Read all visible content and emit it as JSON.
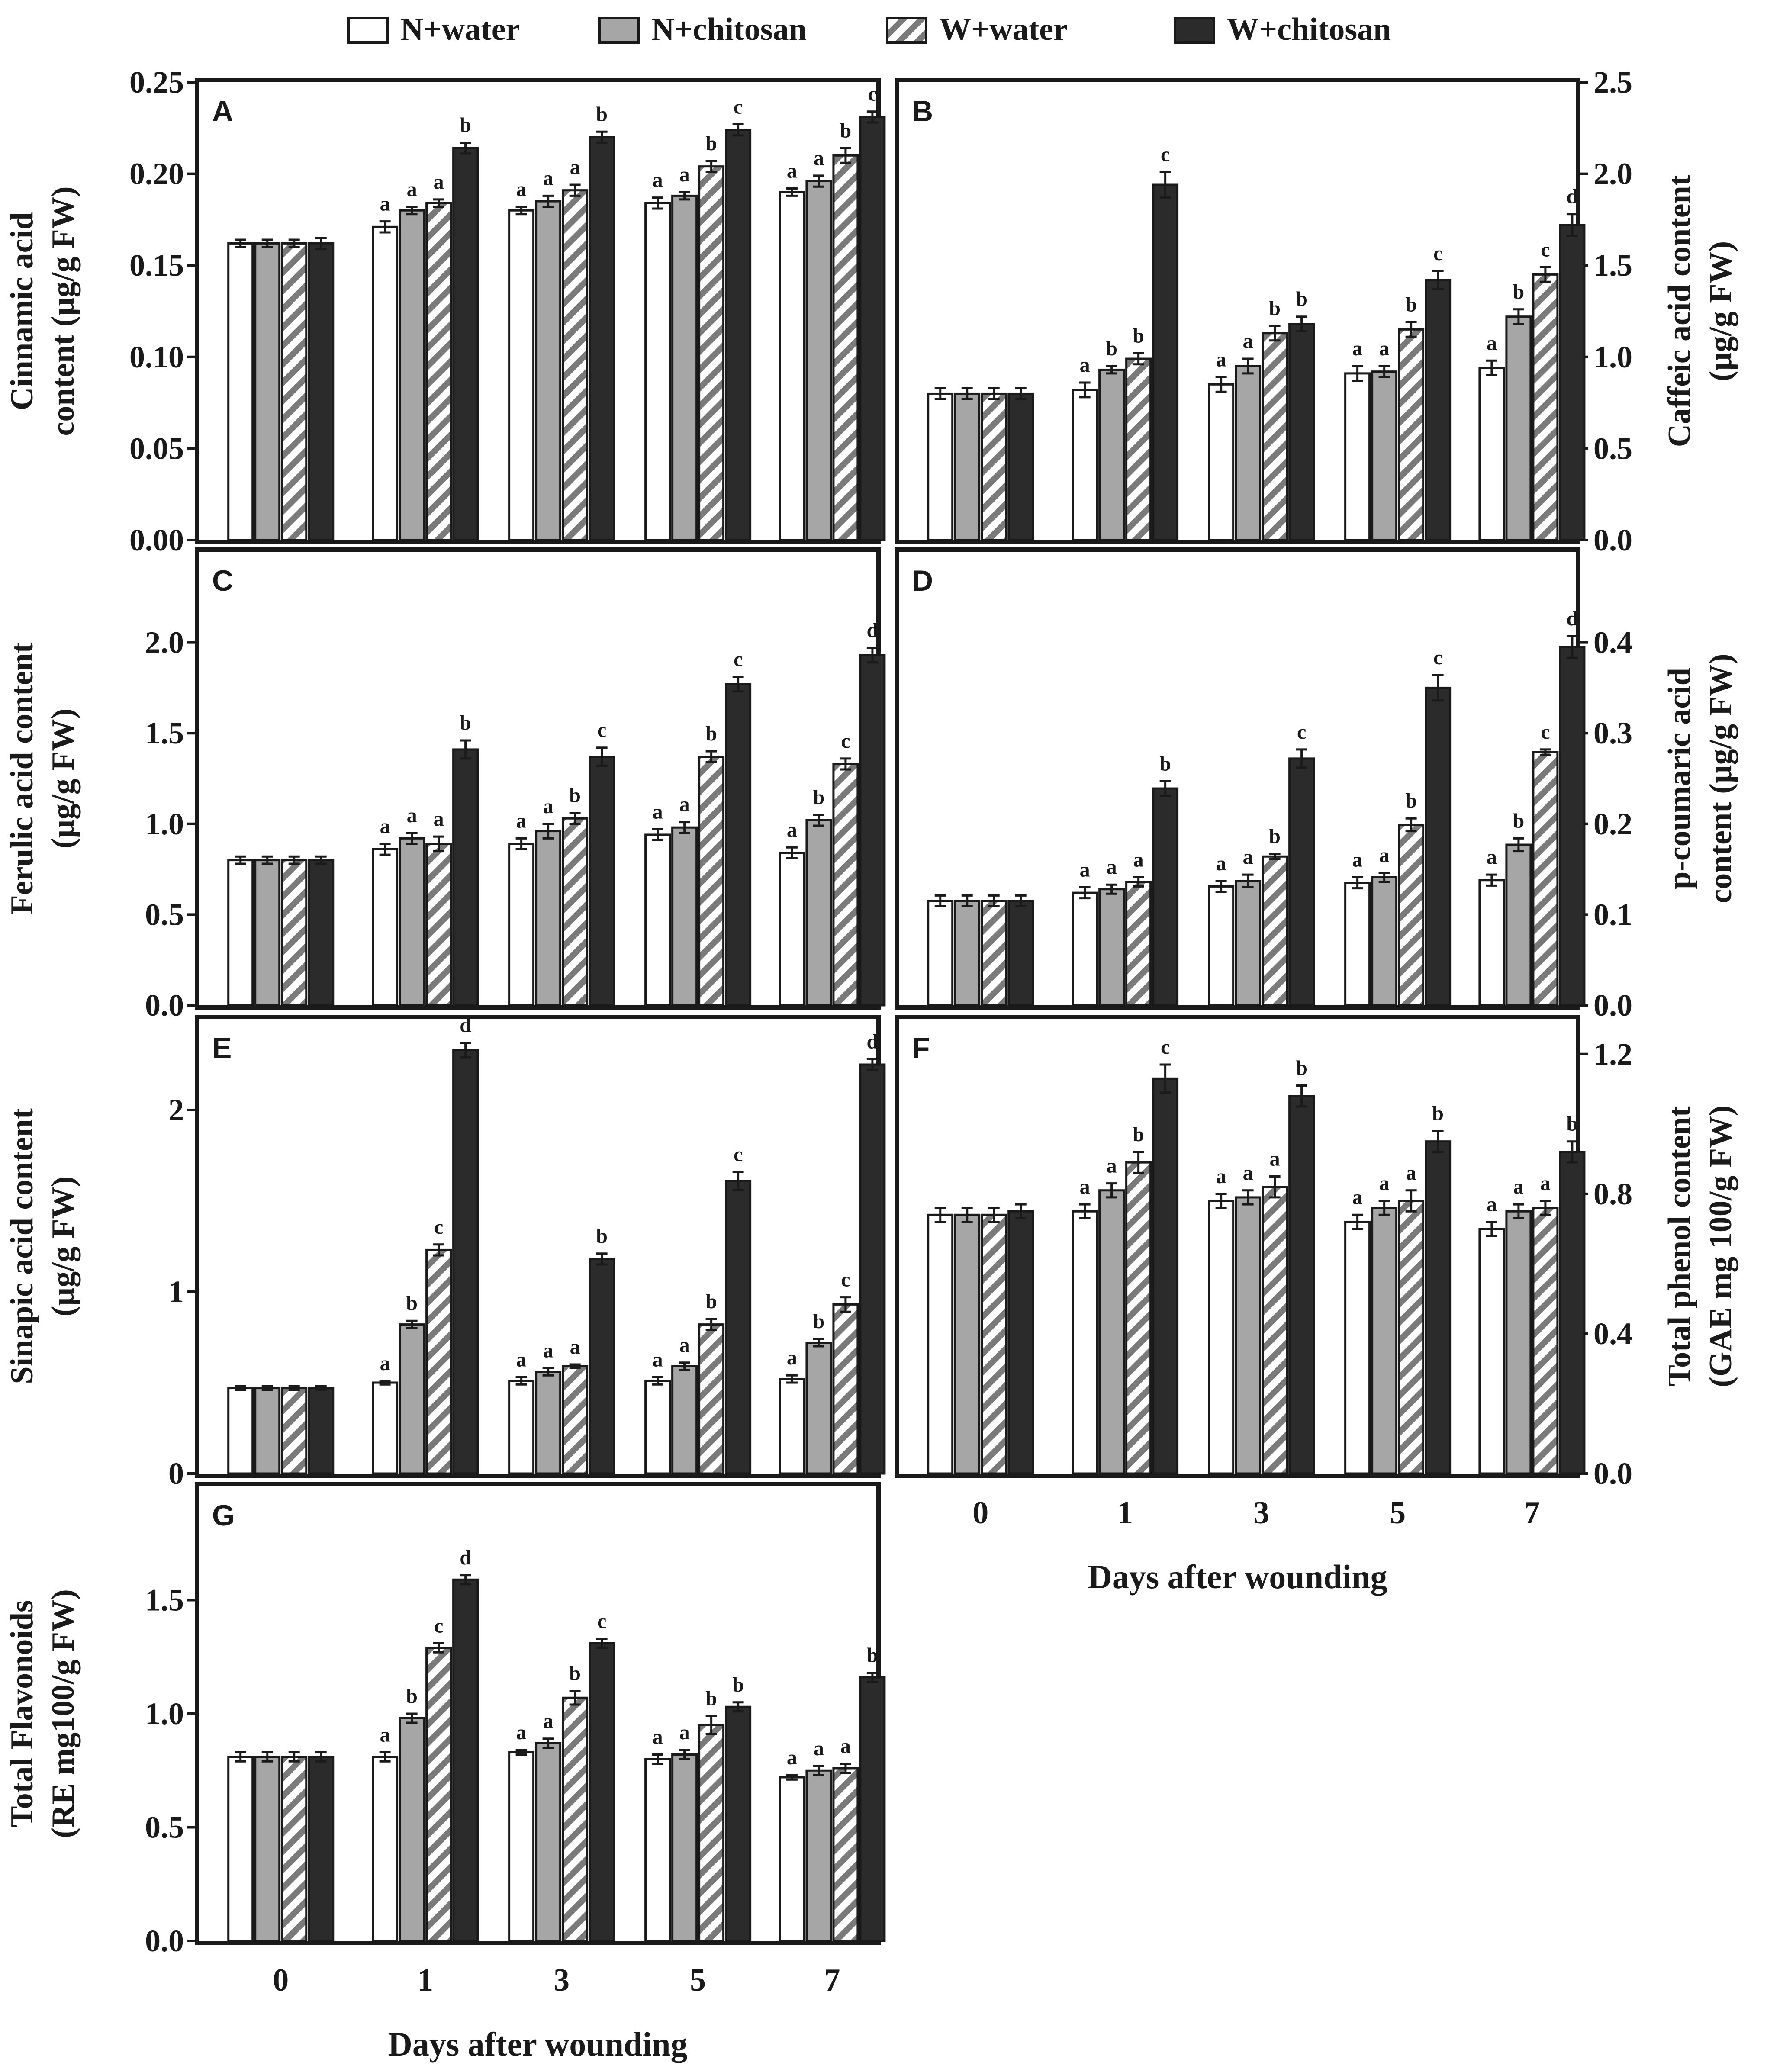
{
  "legend": {
    "items": [
      {
        "label": "N+water",
        "pattern": "white"
      },
      {
        "label": "N+chitosan",
        "pattern": "gray"
      },
      {
        "label": "W+water",
        "pattern": "hatch"
      },
      {
        "label": "W+chitosan",
        "pattern": "black"
      }
    ]
  },
  "colors": {
    "white_fill": "#ffffff",
    "gray_fill": "#a6a6a6",
    "black_fill": "#2b2b2b",
    "hatch_stroke": "#7a7a7a",
    "ink": "#1a1a1a"
  },
  "x_axis_label": "Days after wounding",
  "chart_data": [
    {
      "panel": "A",
      "type": "bar",
      "ylabel": "Cinnamic acid\ncontent (µg/g FW)",
      "axis_side": "left",
      "categories": [
        "0",
        "1",
        "3",
        "5",
        "7"
      ],
      "ylim": [
        0,
        0.25
      ],
      "yticks": [
        0.0,
        0.05,
        0.1,
        0.15,
        0.2,
        0.25
      ],
      "ytick_labels": [
        "0.00",
        "0.05",
        "0.10",
        "0.15",
        "0.20",
        "0.25"
      ],
      "show_xticks": false,
      "series": [
        {
          "name": "N+water",
          "values": [
            0.162,
            0.171,
            0.18,
            0.184,
            0.19
          ],
          "errors": [
            0.002,
            0.003,
            0.002,
            0.003,
            0.002
          ],
          "letters": [
            "",
            "a",
            "a",
            "a",
            "a"
          ]
        },
        {
          "name": "N+chitosan",
          "values": [
            0.162,
            0.18,
            0.185,
            0.188,
            0.196
          ],
          "errors": [
            0.002,
            0.002,
            0.003,
            0.002,
            0.003
          ],
          "letters": [
            "",
            "a",
            "a",
            "a",
            "a"
          ]
        },
        {
          "name": "W+water",
          "values": [
            0.162,
            0.184,
            0.191,
            0.204,
            0.21
          ],
          "errors": [
            0.002,
            0.002,
            0.003,
            0.003,
            0.004
          ],
          "letters": [
            "",
            "a",
            "a",
            "b",
            "b"
          ]
        },
        {
          "name": "W+chitosan",
          "values": [
            0.162,
            0.214,
            0.22,
            0.224,
            0.231
          ],
          "errors": [
            0.003,
            0.003,
            0.003,
            0.003,
            0.003
          ],
          "letters": [
            "",
            "b",
            "b",
            "c",
            "c"
          ]
        }
      ]
    },
    {
      "panel": "B",
      "type": "bar",
      "ylabel": "Caffeic acid content\n(µg/g FW)",
      "axis_side": "right",
      "categories": [
        "0",
        "1",
        "3",
        "5",
        "7"
      ],
      "ylim": [
        0,
        2.5
      ],
      "yticks": [
        0.0,
        0.5,
        1.0,
        1.5,
        2.0,
        2.5
      ],
      "ytick_labels": [
        "0.0",
        "0.5",
        "1.0",
        "1.5",
        "2.0",
        "2.5"
      ],
      "show_xticks": false,
      "series": [
        {
          "name": "N+water",
          "values": [
            0.8,
            0.82,
            0.85,
            0.91,
            0.94
          ],
          "errors": [
            0.03,
            0.04,
            0.04,
            0.04,
            0.04
          ],
          "letters": [
            "",
            "a",
            "a",
            "a",
            "a"
          ]
        },
        {
          "name": "N+chitosan",
          "values": [
            0.8,
            0.93,
            0.95,
            0.92,
            1.22
          ],
          "errors": [
            0.03,
            0.02,
            0.04,
            0.03,
            0.04
          ],
          "letters": [
            "",
            "b",
            "a",
            "a",
            "b"
          ]
        },
        {
          "name": "W+water",
          "values": [
            0.8,
            0.99,
            1.13,
            1.15,
            1.45
          ],
          "errors": [
            0.03,
            0.03,
            0.04,
            0.04,
            0.04
          ],
          "letters": [
            "",
            "b",
            "b",
            "b",
            "c"
          ]
        },
        {
          "name": "W+chitosan",
          "values": [
            0.8,
            1.94,
            1.18,
            1.42,
            1.72
          ],
          "errors": [
            0.03,
            0.07,
            0.04,
            0.05,
            0.06
          ],
          "letters": [
            "",
            "c",
            "b",
            "c",
            "d"
          ]
        }
      ]
    },
    {
      "panel": "C",
      "type": "bar",
      "ylabel": "Ferulic acid content\n(µg/g FW)",
      "axis_side": "left",
      "categories": [
        "0",
        "1",
        "3",
        "5",
        "7"
      ],
      "ylim": [
        0,
        2.5
      ],
      "yticks": [
        0.0,
        0.5,
        1.0,
        1.5,
        2.0
      ],
      "ytick_labels": [
        "0.0",
        "0.5",
        "1.0",
        "1.5",
        "2.0"
      ],
      "show_xticks": false,
      "series": [
        {
          "name": "N+water",
          "values": [
            0.8,
            0.86,
            0.89,
            0.94,
            0.84
          ],
          "errors": [
            0.02,
            0.03,
            0.03,
            0.03,
            0.03
          ],
          "letters": [
            "",
            "a",
            "a",
            "a",
            "a"
          ]
        },
        {
          "name": "N+chitosan",
          "values": [
            0.8,
            0.92,
            0.96,
            0.98,
            1.02
          ],
          "errors": [
            0.02,
            0.03,
            0.04,
            0.03,
            0.03
          ],
          "letters": [
            "",
            "a",
            "a",
            "a",
            "b"
          ]
        },
        {
          "name": "W+water",
          "values": [
            0.8,
            0.89,
            1.03,
            1.37,
            1.33
          ],
          "errors": [
            0.02,
            0.04,
            0.03,
            0.03,
            0.03
          ],
          "letters": [
            "",
            "a",
            "b",
            "b",
            "c"
          ]
        },
        {
          "name": "W+chitosan",
          "values": [
            0.8,
            1.41,
            1.37,
            1.77,
            1.93
          ],
          "errors": [
            0.02,
            0.05,
            0.05,
            0.04,
            0.04
          ],
          "letters": [
            "",
            "b",
            "c",
            "c",
            "d"
          ]
        }
      ]
    },
    {
      "panel": "D",
      "type": "bar",
      "ylabel": "p-coumaric acid\ncontent (µg/g FW)",
      "axis_side": "right",
      "categories": [
        "0",
        "1",
        "3",
        "5",
        "7"
      ],
      "ylim": [
        0,
        0.5
      ],
      "yticks": [
        0.0,
        0.1,
        0.2,
        0.3,
        0.4
      ],
      "ytick_labels": [
        "0.0",
        "0.1",
        "0.2",
        "0.3",
        "0.4"
      ],
      "show_xticks": false,
      "series": [
        {
          "name": "N+water",
          "values": [
            0.115,
            0.124,
            0.131,
            0.135,
            0.138
          ],
          "errors": [
            0.006,
            0.006,
            0.006,
            0.006,
            0.006
          ],
          "letters": [
            "",
            "a",
            "a",
            "a",
            "a"
          ]
        },
        {
          "name": "N+chitosan",
          "values": [
            0.115,
            0.128,
            0.137,
            0.141,
            0.177
          ],
          "errors": [
            0.006,
            0.005,
            0.007,
            0.005,
            0.007
          ],
          "letters": [
            "",
            "a",
            "a",
            "a",
            "b"
          ]
        },
        {
          "name": "W+water",
          "values": [
            0.115,
            0.136,
            0.164,
            0.199,
            0.279
          ],
          "errors": [
            0.006,
            0.005,
            0.003,
            0.007,
            0.003
          ],
          "letters": [
            "",
            "a",
            "b",
            "b",
            "c"
          ]
        },
        {
          "name": "W+chitosan",
          "values": [
            0.115,
            0.239,
            0.272,
            0.35,
            0.395
          ],
          "errors": [
            0.006,
            0.008,
            0.01,
            0.014,
            0.012
          ],
          "letters": [
            "",
            "b",
            "c",
            "c",
            "d"
          ]
        }
      ]
    },
    {
      "panel": "E",
      "type": "bar",
      "ylabel": "Sinapic acid content\n(µg/g FW)",
      "axis_side": "left",
      "categories": [
        "0",
        "1",
        "3",
        "5",
        "7"
      ],
      "ylim": [
        0,
        2.5
      ],
      "yticks": [
        0,
        1,
        2
      ],
      "ytick_labels": [
        "0",
        "1",
        "2"
      ],
      "show_xticks": false,
      "series": [
        {
          "name": "N+water",
          "values": [
            0.47,
            0.5,
            0.51,
            0.51,
            0.52
          ],
          "errors": [
            0.01,
            0.01,
            0.02,
            0.02,
            0.02
          ],
          "letters": [
            "",
            "a",
            "a",
            "a",
            "a"
          ]
        },
        {
          "name": "N+chitosan",
          "values": [
            0.47,
            0.82,
            0.56,
            0.59,
            0.72
          ],
          "errors": [
            0.01,
            0.02,
            0.02,
            0.02,
            0.02
          ],
          "letters": [
            "",
            "b",
            "a",
            "a",
            "b"
          ]
        },
        {
          "name": "W+water",
          "values": [
            0.47,
            1.23,
            0.59,
            0.82,
            0.93
          ],
          "errors": [
            0.01,
            0.03,
            0.01,
            0.03,
            0.04
          ],
          "letters": [
            "",
            "c",
            "a",
            "b",
            "c"
          ]
        },
        {
          "name": "W+chitosan",
          "values": [
            0.47,
            2.33,
            1.18,
            1.61,
            2.25
          ],
          "errors": [
            0.01,
            0.04,
            0.03,
            0.05,
            0.03
          ],
          "letters": [
            "",
            "d",
            "b",
            "c",
            "d"
          ]
        }
      ]
    },
    {
      "panel": "F",
      "type": "bar",
      "ylabel": "Total phenol content\n(GAE mg 100/g FW)",
      "axis_side": "right",
      "categories": [
        "0",
        "1",
        "3",
        "5",
        "7"
      ],
      "ylim": [
        0,
        1.3
      ],
      "yticks": [
        0.0,
        0.4,
        0.8,
        1.2
      ],
      "ytick_labels": [
        "0.0",
        "0.4",
        "0.8",
        "1.2"
      ],
      "show_xticks": true,
      "series": [
        {
          "name": "N+water",
          "values": [
            0.74,
            0.75,
            0.78,
            0.72,
            0.7
          ],
          "errors": [
            0.02,
            0.02,
            0.02,
            0.02,
            0.02
          ],
          "letters": [
            "",
            "a",
            "a",
            "a",
            "a"
          ]
        },
        {
          "name": "N+chitosan",
          "values": [
            0.74,
            0.81,
            0.79,
            0.76,
            0.75
          ],
          "errors": [
            0.02,
            0.02,
            0.02,
            0.02,
            0.02
          ],
          "letters": [
            "",
            "a",
            "a",
            "a",
            "a"
          ]
        },
        {
          "name": "W+water",
          "values": [
            0.74,
            0.89,
            0.82,
            0.78,
            0.76
          ],
          "errors": [
            0.02,
            0.03,
            0.03,
            0.03,
            0.02
          ],
          "letters": [
            "",
            "b",
            "a",
            "a",
            "a"
          ]
        },
        {
          "name": "W+chitosan",
          "values": [
            0.75,
            1.13,
            1.08,
            0.95,
            0.92
          ],
          "errors": [
            0.02,
            0.04,
            0.03,
            0.03,
            0.03
          ],
          "letters": [
            "",
            "c",
            "b",
            "b",
            "b"
          ]
        }
      ]
    },
    {
      "panel": "G",
      "type": "bar",
      "ylabel": "Total Flavonoids\n(RE mg100/g FW)",
      "axis_side": "left",
      "categories": [
        "0",
        "1",
        "3",
        "5",
        "7"
      ],
      "ylim": [
        0,
        2.0
      ],
      "yticks": [
        0.0,
        0.5,
        1.0,
        1.5
      ],
      "ytick_labels": [
        "0.0",
        "0.5",
        "1.0",
        "1.5"
      ],
      "show_xticks": true,
      "series": [
        {
          "name": "N+water",
          "values": [
            0.81,
            0.81,
            0.83,
            0.8,
            0.72
          ],
          "errors": [
            0.02,
            0.02,
            0.01,
            0.02,
            0.01
          ],
          "letters": [
            "",
            "a",
            "a",
            "a",
            "a"
          ]
        },
        {
          "name": "N+chitosan",
          "values": [
            0.81,
            0.98,
            0.87,
            0.82,
            0.75
          ],
          "errors": [
            0.02,
            0.02,
            0.02,
            0.02,
            0.02
          ],
          "letters": [
            "",
            "b",
            "a",
            "a",
            "a"
          ]
        },
        {
          "name": "W+water",
          "values": [
            0.81,
            1.29,
            1.07,
            0.95,
            0.76
          ],
          "errors": [
            0.02,
            0.02,
            0.03,
            0.04,
            0.02
          ],
          "letters": [
            "",
            "c",
            "b",
            "b",
            "a"
          ]
        },
        {
          "name": "W+chitosan",
          "values": [
            0.81,
            1.59,
            1.31,
            1.03,
            1.16
          ],
          "errors": [
            0.02,
            0.02,
            0.02,
            0.02,
            0.02
          ],
          "letters": [
            "",
            "d",
            "c",
            "b",
            "b"
          ]
        }
      ]
    }
  ]
}
